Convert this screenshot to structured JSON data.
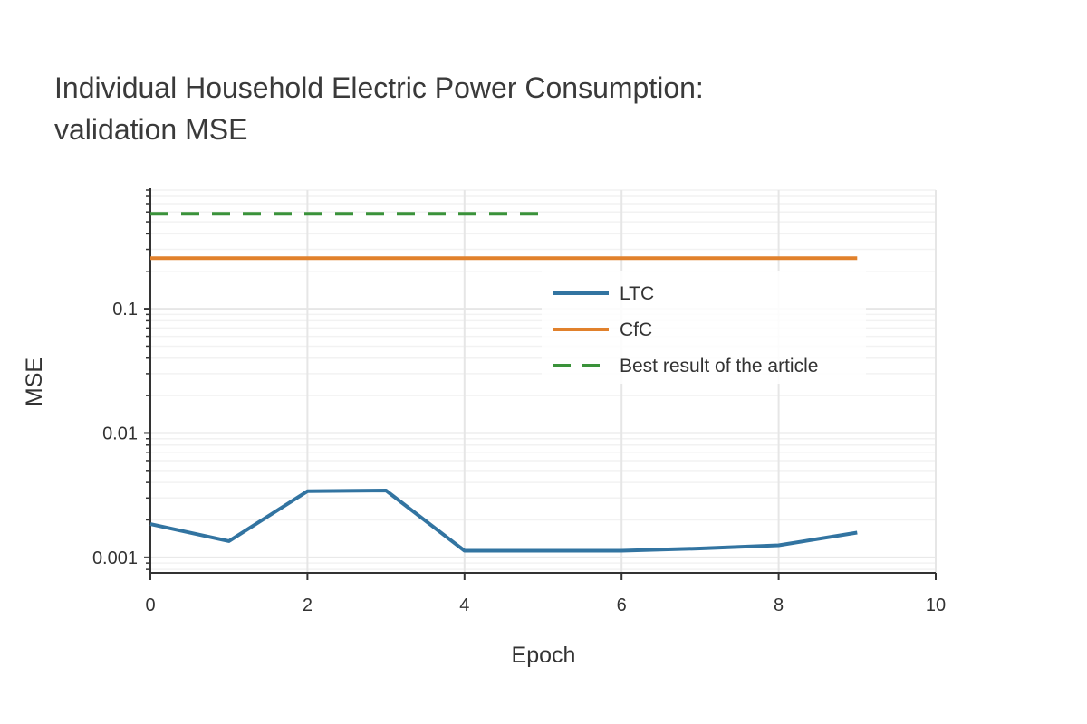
{
  "chart_data": {
    "type": "line",
    "title_line1": "Individual Household Electric Power Consumption:",
    "title_line2": "validation MSE",
    "xlabel": "Epoch",
    "ylabel": "MSE",
    "xlim": [
      0,
      10
    ],
    "ylim": [
      0.00075,
      0.9
    ],
    "yscale": "log",
    "x_ticks": [
      0,
      2,
      4,
      6,
      8,
      10
    ],
    "y_ticks": [
      0.001,
      0.01,
      0.1
    ],
    "y_tick_labels": [
      "0.001",
      "0.01",
      "0.1"
    ],
    "grid": true,
    "legend_position": "center-right",
    "series": [
      {
        "name": "LTC",
        "color": "#3274a1",
        "style": "solid",
        "x": [
          0,
          1,
          2,
          3,
          4,
          5,
          6,
          7,
          8,
          9
        ],
        "values": [
          0.00185,
          0.00135,
          0.0034,
          0.00345,
          0.00113,
          0.00113,
          0.00113,
          0.00118,
          0.00125,
          0.00158
        ]
      },
      {
        "name": "CfC",
        "color": "#e1812c",
        "style": "solid",
        "x": [
          0,
          9
        ],
        "values": [
          0.255,
          0.255
        ]
      },
      {
        "name": "Best result of the article",
        "color": "#3a923a",
        "style": "dashed",
        "x": [
          0,
          5
        ],
        "values": [
          0.58,
          0.58
        ]
      }
    ]
  }
}
